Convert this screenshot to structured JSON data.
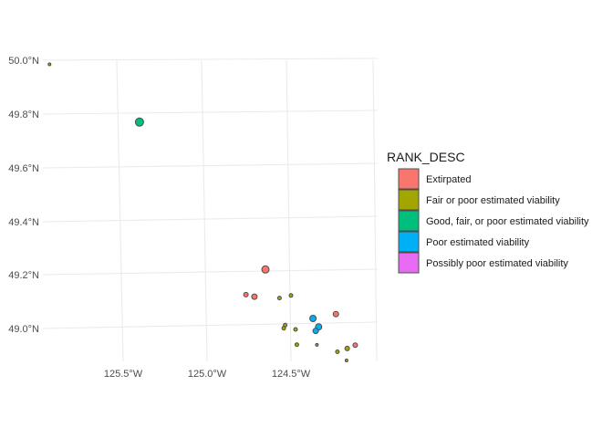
{
  "map": {
    "lat_ticks": [
      "50.0°N",
      "49.8°N",
      "49.6°N",
      "49.4°N",
      "49.2°N",
      "49.0°N"
    ],
    "lon_ticks": [
      "125.5°W",
      "125.0°W",
      "124.5°W"
    ],
    "grid": true
  },
  "legend": {
    "title": "RANK_DESC",
    "items": [
      {
        "label": "Extirpated",
        "color": "#F8766D"
      },
      {
        "label": "Fair or poor estimated viability",
        "color": "#A3A500"
      },
      {
        "label": "Good, fair, or poor estimated viability",
        "color": "#00BF7D"
      },
      {
        "label": "Poor estimated viability",
        "color": "#00B0F6"
      },
      {
        "label": "Possibly poor estimated viability",
        "color": "#E76BF3"
      }
    ],
    "placement": "right"
  },
  "features": [
    {
      "lon": -125.81,
      "lat": 49.946,
      "rank": 1,
      "size": 1.5
    },
    {
      "lon": -125.3,
      "lat": 49.755,
      "rank": 2,
      "size": 4.5
    },
    {
      "lon": -124.62,
      "lat": 49.238,
      "rank": 0,
      "size": 4
    },
    {
      "lon": -124.75,
      "lat": 49.138,
      "rank": 0,
      "size": 2.5
    },
    {
      "lon": -124.7,
      "lat": 49.133,
      "rank": 0,
      "size": 3
    },
    {
      "lon": -124.55,
      "lat": 49.135,
      "rank": 1,
      "size": 2
    },
    {
      "lon": -124.48,
      "lat": 49.148,
      "rank": 1,
      "size": 2
    },
    {
      "lon": -124.53,
      "lat": 49.035,
      "rank": 1,
      "size": 2
    },
    {
      "lon": -124.54,
      "lat": 49.023,
      "rank": 1,
      "size": 2
    },
    {
      "lon": -124.47,
      "lat": 49.022,
      "rank": 1,
      "size": 2
    },
    {
      "lon": -124.36,
      "lat": 49.068,
      "rank": 3,
      "size": 3.5
    },
    {
      "lon": -124.33,
      "lat": 49.038,
      "rank": 3,
      "size": 3.5
    },
    {
      "lon": -124.35,
      "lat": 49.022,
      "rank": 3,
      "size": 3
    },
    {
      "lon": -124.22,
      "lat": 49.091,
      "rank": 0,
      "size": 3
    },
    {
      "lon": -124.47,
      "lat": 48.965,
      "rank": 1,
      "size": 2
    },
    {
      "lon": -124.35,
      "lat": 48.97,
      "rank": 1,
      "size": 1.5
    },
    {
      "lon": -124.23,
      "lat": 48.95,
      "rank": 1,
      "size": 2
    },
    {
      "lon": -124.17,
      "lat": 48.965,
      "rank": 1,
      "size": 2.5
    },
    {
      "lon": -124.12,
      "lat": 48.98,
      "rank": 0,
      "size": 2.5
    },
    {
      "lon": -124.18,
      "lat": 48.92,
      "rank": 1,
      "size": 1.5
    }
  ]
}
